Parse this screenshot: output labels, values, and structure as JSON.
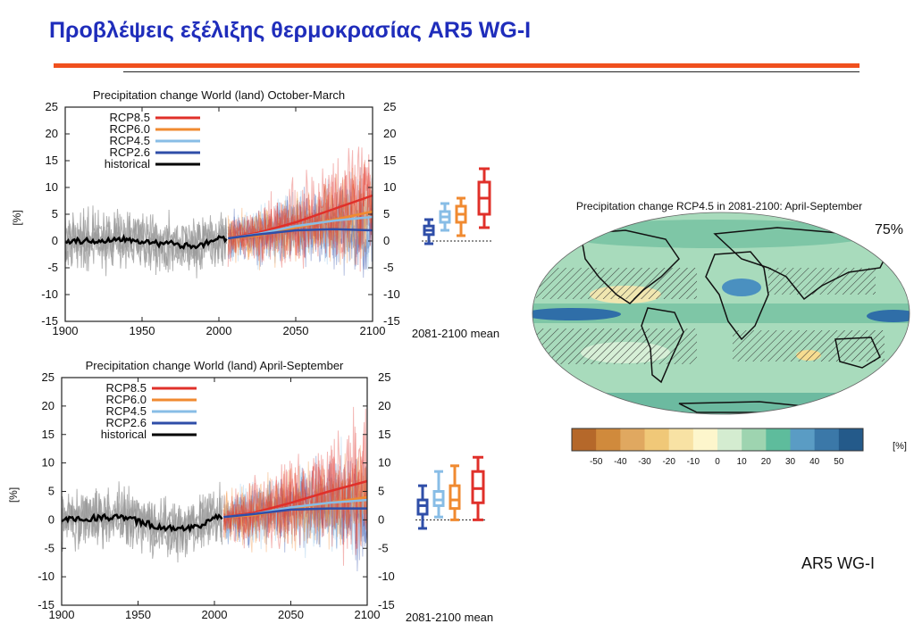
{
  "slide": {
    "title": "Προβλέψεις εξέλιξης θερμοκρασίας AR5 WG-I",
    "footer": "AR5 WG-I"
  },
  "colors": {
    "title": "#1f2dbb",
    "rule": "#f0501e",
    "rcp85": "#e0302a",
    "rcp60": "#f08a30",
    "rcp45": "#88bde6",
    "rcp26": "#2f4ea8",
    "historical": "#000000",
    "spread": "#9a9a9a"
  },
  "chart_data": [
    {
      "type": "line",
      "title": "Precipitation change World (land) October-March",
      "ylabel": "[%]",
      "xlabel": "",
      "xlim": [
        1900,
        2100
      ],
      "ylim": [
        -15,
        25
      ],
      "xticks": [
        1900,
        1950,
        2000,
        2050,
        2100
      ],
      "yticks": [
        -15,
        -10,
        -5,
        0,
        5,
        10,
        15,
        20,
        25
      ],
      "legend_position": "top-left",
      "series": [
        {
          "name": "RCP8.5",
          "x": [
            2006,
            2025,
            2050,
            2075,
            2100
          ],
          "values": [
            0.5,
            1.5,
            3.5,
            6.0,
            8.5
          ]
        },
        {
          "name": "RCP6.0",
          "x": [
            2006,
            2025,
            2050,
            2075,
            2100
          ],
          "values": [
            0.5,
            1.0,
            2.5,
            4.0,
            5.5
          ]
        },
        {
          "name": "RCP4.5",
          "x": [
            2006,
            2025,
            2050,
            2075,
            2100
          ],
          "values": [
            0.5,
            1.3,
            2.8,
            3.8,
            4.5
          ]
        },
        {
          "name": "RCP2.6",
          "x": [
            2006,
            2025,
            2050,
            2075,
            2100
          ],
          "values": [
            0.5,
            1.2,
            2.0,
            2.2,
            2.0
          ]
        },
        {
          "name": "historical",
          "x": [
            1900,
            1920,
            1940,
            1960,
            1970,
            1980,
            1990,
            2000,
            2005
          ],
          "values": [
            0,
            0,
            0.5,
            -0.5,
            -0.5,
            -1.0,
            -0.5,
            0.5,
            0.5
          ]
        }
      ],
      "period_mean": {
        "label": "2081-2100 mean",
        "boxes": [
          {
            "series": "RCP2.6",
            "min": -0.5,
            "q1": 1.2,
            "median": 2.0,
            "q3": 2.8,
            "max": 4.0
          },
          {
            "series": "RCP4.5",
            "min": 2.0,
            "q1": 3.5,
            "median": 4.5,
            "q3": 5.5,
            "max": 7.0
          },
          {
            "series": "RCP6.0",
            "min": 1.0,
            "q1": 3.5,
            "median": 5.0,
            "q3": 6.5,
            "max": 8.0
          },
          {
            "series": "RCP8.5",
            "min": 2.5,
            "q1": 5.0,
            "median": 8.0,
            "q3": 11.0,
            "max": 13.5
          }
        ]
      }
    },
    {
      "type": "line",
      "title": "Precipitation change World (land) April-September",
      "ylabel": "[%]",
      "xlabel": "",
      "xlim": [
        1900,
        2100
      ],
      "ylim": [
        -15,
        25
      ],
      "xticks": [
        1900,
        1950,
        2000,
        2050,
        2100
      ],
      "yticks": [
        -15,
        -10,
        -5,
        0,
        5,
        10,
        15,
        20,
        25
      ],
      "legend_position": "top-left",
      "series": [
        {
          "name": "RCP8.5",
          "x": [
            2006,
            2025,
            2050,
            2075,
            2100
          ],
          "values": [
            0.5,
            1.2,
            3.0,
            5.0,
            6.8
          ]
        },
        {
          "name": "RCP6.0",
          "x": [
            2006,
            2025,
            2050,
            2075,
            2100
          ],
          "values": [
            0.5,
            0.8,
            2.0,
            3.0,
            4.0
          ]
        },
        {
          "name": "RCP4.5",
          "x": [
            2006,
            2025,
            2050,
            2075,
            2100
          ],
          "values": [
            0.5,
            1.0,
            2.2,
            3.0,
            3.5
          ]
        },
        {
          "name": "RCP2.6",
          "x": [
            2006,
            2025,
            2050,
            2075,
            2100
          ],
          "values": [
            0.5,
            1.0,
            1.8,
            2.0,
            2.0
          ]
        },
        {
          "name": "historical",
          "x": [
            1900,
            1920,
            1940,
            1960,
            1970,
            1980,
            1990,
            2000,
            2005
          ],
          "values": [
            0,
            0.3,
            0.5,
            -1.0,
            -1.5,
            -1.5,
            -1.0,
            0.5,
            0.5
          ]
        }
      ],
      "period_mean": {
        "label": "2081-2100 mean",
        "boxes": [
          {
            "series": "RCP2.6",
            "min": -1.5,
            "q1": 1.0,
            "median": 2.5,
            "q3": 3.5,
            "max": 6.0
          },
          {
            "series": "RCP4.5",
            "min": 0.5,
            "q1": 2.5,
            "median": 3.5,
            "q3": 5.0,
            "max": 8.5
          },
          {
            "series": "RCP6.0",
            "min": 0.0,
            "q1": 2.0,
            "median": 3.5,
            "q3": 6.0,
            "max": 9.5
          },
          {
            "series": "RCP8.5",
            "min": 0.0,
            "q1": 3.0,
            "median": 5.5,
            "q3": 8.5,
            "max": 11.0
          }
        ]
      }
    },
    {
      "type": "heatmap",
      "title": "Precipitation change RCP4.5 in 2081-2100: April-September",
      "annotation": "75%",
      "colorbar": {
        "unit": "[%]",
        "ticks": [
          -50,
          -40,
          -30,
          -20,
          -10,
          0,
          10,
          20,
          30,
          40,
          50
        ],
        "colors": [
          "#b5682a",
          "#d08a3c",
          "#e0a860",
          "#f0c878",
          "#f8e2a4",
          "#fdf6cc",
          "#d4ecd0",
          "#9ed4b0",
          "#5ebc9c",
          "#5a9cc4",
          "#3b78a8",
          "#245a8a"
        ]
      }
    }
  ]
}
